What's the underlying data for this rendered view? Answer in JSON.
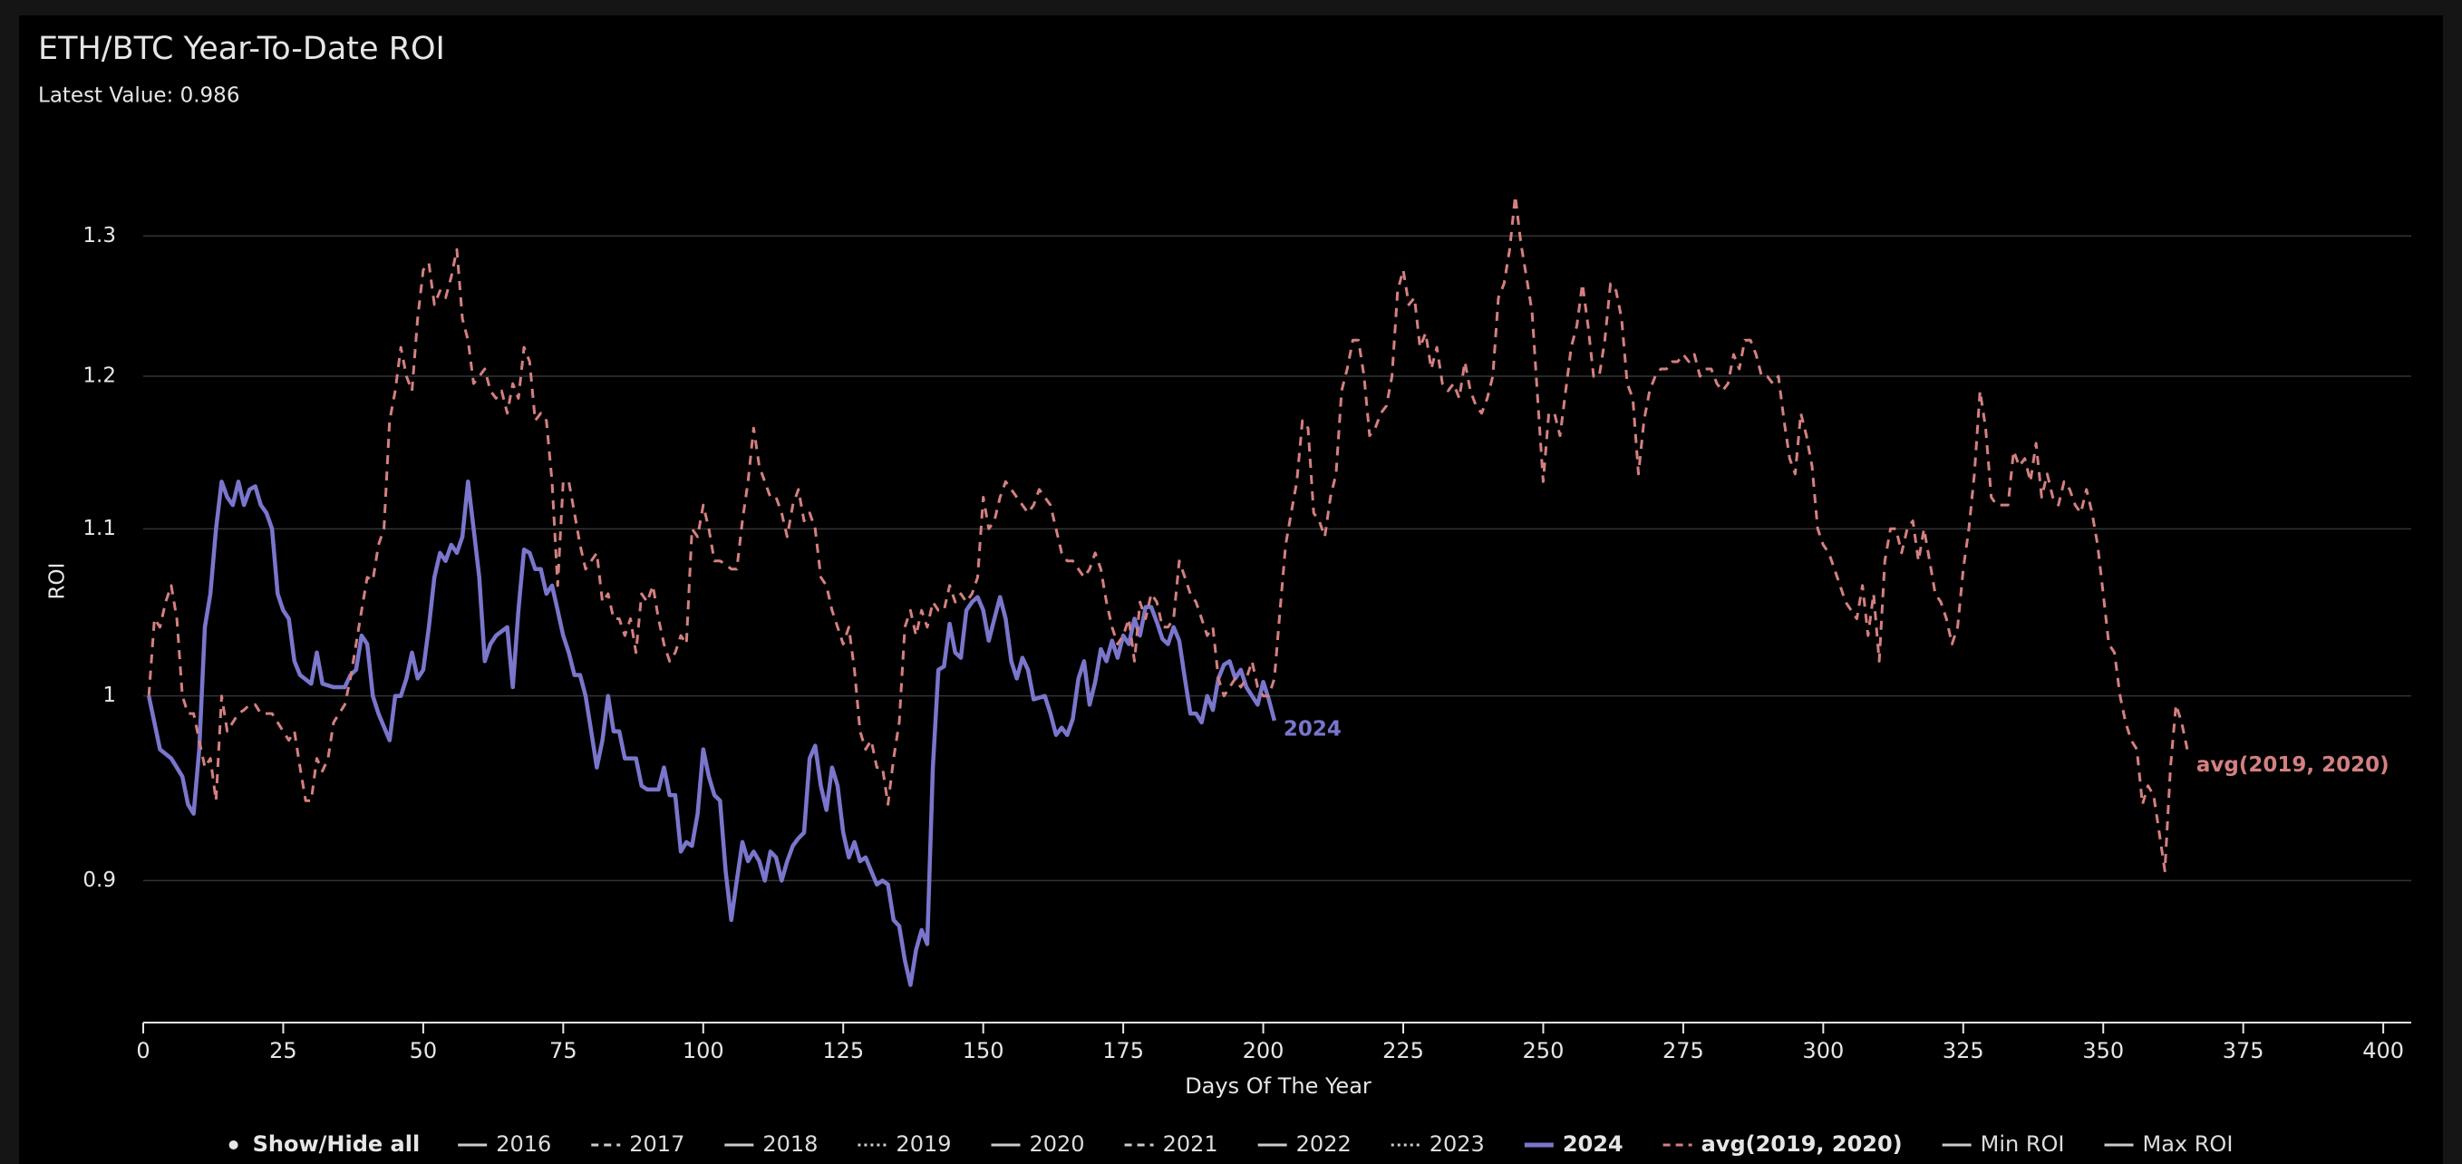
{
  "chart_data": {
    "type": "line",
    "title": "ETH/BTC Year-To-Date ROI",
    "subtitle": "Latest Value: 0.986",
    "x_label": "Days Of The Year",
    "y_label": "ROI",
    "yscale": "log",
    "grid": true,
    "legend_position": "bottom",
    "legend_toggle": "Show/Hide all",
    "xlim": [
      0,
      405
    ],
    "xticks": [
      0,
      25,
      50,
      75,
      100,
      125,
      150,
      175,
      200,
      225,
      250,
      275,
      300,
      325,
      350,
      375,
      400
    ],
    "ylim": [
      0.83,
      1.36
    ],
    "yticks": [
      0.9,
      1,
      1.1,
      1.2,
      1.3
    ],
    "series": [
      {
        "name": "2016",
        "color": "#cccccc",
        "dash": "solid",
        "visible": false,
        "x": [],
        "values": []
      },
      {
        "name": "2017",
        "color": "#cccccc",
        "dash": "dashed",
        "visible": false,
        "x": [],
        "values": []
      },
      {
        "name": "2018",
        "color": "#cccccc",
        "dash": "solid",
        "visible": false,
        "x": [],
        "values": []
      },
      {
        "name": "2019",
        "color": "#cccccc",
        "dash": "dotted",
        "visible": false,
        "x": [],
        "values": []
      },
      {
        "name": "2020",
        "color": "#cccccc",
        "dash": "solid",
        "visible": false,
        "x": [],
        "values": []
      },
      {
        "name": "2021",
        "color": "#cccccc",
        "dash": "dashed",
        "visible": false,
        "x": [],
        "values": []
      },
      {
        "name": "2022",
        "color": "#cccccc",
        "dash": "solid",
        "visible": false,
        "x": [],
        "values": []
      },
      {
        "name": "2023",
        "color": "#cccccc",
        "dash": "dotted",
        "visible": false,
        "x": [],
        "values": []
      },
      {
        "name": "2024",
        "color": "#7a76cc",
        "dash": "solid",
        "visible": true,
        "x": [
          1,
          3,
          5,
          7,
          8,
          9,
          10,
          11,
          12,
          13,
          14,
          15,
          16,
          17,
          18,
          19,
          20,
          21,
          22,
          23,
          24,
          25,
          26,
          27,
          28,
          30,
          31,
          32,
          34,
          36,
          37,
          38,
          39,
          40,
          41,
          42,
          44,
          45,
          46,
          47,
          48,
          49,
          50,
          51,
          52,
          53,
          54,
          55,
          56,
          57,
          58,
          59,
          60,
          61,
          62,
          63,
          65,
          66,
          67,
          68,
          69,
          70,
          71,
          72,
          73,
          74,
          75,
          76,
          77,
          78,
          79,
          80,
          81,
          82,
          83,
          84,
          85,
          86,
          88,
          89,
          90,
          92,
          93,
          94,
          95,
          96,
          97,
          98,
          99,
          100,
          101,
          102,
          103,
          104,
          105,
          106,
          107,
          108,
          109,
          110,
          111,
          112,
          113,
          114,
          115,
          116,
          117,
          118,
          119,
          120,
          121,
          122,
          123,
          124,
          125,
          126,
          127,
          128,
          129,
          130,
          131,
          132,
          133,
          134,
          135,
          136,
          137,
          138,
          139,
          140,
          141,
          142,
          143,
          144,
          145,
          146,
          147,
          148,
          149,
          150,
          151,
          152,
          153,
          154,
          155,
          156,
          157,
          158,
          159,
          161,
          162,
          163,
          164,
          165,
          166,
          167,
          168,
          169,
          170,
          171,
          172,
          173,
          174,
          175,
          176,
          177,
          178,
          179,
          180,
          181,
          182,
          183,
          184,
          185,
          186,
          187,
          188,
          189,
          190,
          191,
          192,
          193,
          194,
          195,
          196,
          197,
          198,
          199,
          200,
          201,
          202
        ],
        "values": [
          1.0,
          0.97,
          0.965,
          0.955,
          0.94,
          0.935,
          0.97,
          1.04,
          1.06,
          1.1,
          1.13,
          1.12,
          1.115,
          1.13,
          1.115,
          1.125,
          1.127,
          1.115,
          1.11,
          1.1,
          1.06,
          1.05,
          1.045,
          1.02,
          1.012,
          1.007,
          1.025,
          1.007,
          1.005,
          1.005,
          1.012,
          1.015,
          1.035,
          1.03,
          1.0,
          0.99,
          0.975,
          1.0,
          1.0,
          1.01,
          1.025,
          1.01,
          1.015,
          1.04,
          1.07,
          1.085,
          1.08,
          1.09,
          1.085,
          1.095,
          1.13,
          1.1,
          1.07,
          1.02,
          1.03,
          1.035,
          1.04,
          1.005,
          1.05,
          1.087,
          1.085,
          1.075,
          1.075,
          1.06,
          1.065,
          1.05,
          1.035,
          1.025,
          1.012,
          1.012,
          1.0,
          0.98,
          0.96,
          0.975,
          1.0,
          0.98,
          0.98,
          0.965,
          0.965,
          0.95,
          0.948,
          0.948,
          0.96,
          0.945,
          0.945,
          0.915,
          0.92,
          0.918,
          0.935,
          0.97,
          0.955,
          0.945,
          0.942,
          0.905,
          0.88,
          0.9,
          0.92,
          0.91,
          0.915,
          0.91,
          0.9,
          0.915,
          0.912,
          0.9,
          0.91,
          0.918,
          0.922,
          0.925,
          0.965,
          0.972,
          0.95,
          0.937,
          0.96,
          0.95,
          0.925,
          0.912,
          0.92,
          0.91,
          0.912,
          0.905,
          0.898,
          0.9,
          0.898,
          0.88,
          0.877,
          0.86,
          0.848,
          0.865,
          0.875,
          0.868,
          0.96,
          1.015,
          1.017,
          1.042,
          1.025,
          1.022,
          1.05,
          1.055,
          1.058,
          1.05,
          1.032,
          1.045,
          1.058,
          1.045,
          1.02,
          1.01,
          1.022,
          1.015,
          0.998,
          1.0,
          0.99,
          0.978,
          0.982,
          0.978,
          0.987,
          1.01,
          1.02,
          0.995,
          1.008,
          1.027,
          1.02,
          1.032,
          1.022,
          1.035,
          1.03,
          1.045,
          1.035,
          1.052,
          1.052,
          1.043,
          1.033,
          1.03,
          1.04,
          1.032,
          1.01,
          0.99,
          0.99,
          0.985,
          1.0,
          0.992,
          1.01,
          1.018,
          1.02,
          1.01,
          1.015,
          1.005,
          1.0,
          0.995,
          1.008,
          0.998,
          0.986
        ]
      },
      {
        "name": "avg(2019, 2020)",
        "color": "#d48080",
        "dash": "dashed",
        "visible": true,
        "x": [
          1,
          2,
          3,
          4,
          5,
          6,
          7,
          8,
          9,
          10,
          11,
          12,
          13,
          14,
          15,
          16,
          17,
          18,
          19,
          20,
          21,
          22,
          23,
          24,
          25,
          26,
          27,
          28,
          29,
          30,
          31,
          32,
          33,
          34,
          35,
          36,
          37,
          38,
          39,
          40,
          41,
          42,
          43,
          44,
          45,
          46,
          47,
          48,
          49,
          50,
          51,
          52,
          53,
          54,
          55,
          56,
          57,
          58,
          59,
          60,
          61,
          62,
          63,
          64,
          65,
          66,
          67,
          68,
          69,
          70,
          71,
          72,
          73,
          74,
          75,
          76,
          77,
          78,
          79,
          80,
          81,
          82,
          83,
          84,
          85,
          86,
          87,
          88,
          89,
          90,
          91,
          92,
          93,
          94,
          95,
          96,
          97,
          98,
          99,
          100,
          101,
          102,
          103,
          104,
          105,
          106,
          107,
          108,
          109,
          110,
          111,
          112,
          113,
          114,
          115,
          116,
          117,
          118,
          119,
          120,
          121,
          122,
          123,
          124,
          125,
          126,
          127,
          128,
          129,
          130,
          131,
          132,
          133,
          134,
          135,
          136,
          137,
          138,
          139,
          140,
          141,
          142,
          143,
          144,
          145,
          146,
          147,
          148,
          149,
          150,
          151,
          152,
          153,
          154,
          155,
          156,
          157,
          158,
          159,
          160,
          161,
          162,
          163,
          164,
          165,
          166,
          167,
          168,
          169,
          170,
          171,
          172,
          173,
          174,
          175,
          176,
          177,
          178,
          179,
          180,
          181,
          182,
          183,
          184,
          185,
          186,
          187,
          188,
          189,
          190,
          191,
          192,
          193,
          194,
          195,
          196,
          197,
          198,
          199,
          200,
          201,
          202,
          203,
          204,
          205,
          206,
          207,
          208,
          209,
          210,
          211,
          212,
          213,
          214,
          215,
          216,
          217,
          218,
          219,
          220,
          221,
          222,
          223,
          224,
          225,
          226,
          227,
          228,
          229,
          230,
          231,
          232,
          233,
          234,
          235,
          236,
          237,
          238,
          239,
          240,
          241,
          242,
          243,
          244,
          245,
          246,
          247,
          248,
          249,
          250,
          251,
          252,
          253,
          254,
          255,
          256,
          257,
          258,
          259,
          260,
          261,
          262,
          263,
          264,
          265,
          266,
          267,
          268,
          269,
          270,
          271,
          272,
          273,
          274,
          275,
          276,
          277,
          278,
          279,
          280,
          281,
          282,
          283,
          284,
          285,
          286,
          287,
          288,
          289,
          290,
          291,
          292,
          293,
          294,
          295,
          296,
          297,
          298,
          299,
          300,
          301,
          302,
          303,
          304,
          305,
          306,
          307,
          308,
          309,
          310,
          311,
          312,
          313,
          314,
          315,
          316,
          317,
          318,
          319,
          320,
          321,
          322,
          323,
          324,
          325,
          326,
          327,
          328,
          329,
          330,
          331,
          332,
          333,
          334,
          335,
          336,
          337,
          338,
          339,
          340,
          341,
          342,
          343,
          344,
          345,
          346,
          347,
          348,
          349,
          350,
          351,
          352,
          353,
          354,
          355,
          356,
          357,
          358,
          359,
          360,
          361,
          362,
          363,
          364,
          365
        ],
        "values": [
          1.0,
          1.045,
          1.04,
          1.055,
          1.065,
          1.045,
          1.0,
          0.99,
          0.99,
          0.975,
          0.96,
          0.965,
          0.942,
          1.0,
          0.98,
          0.985,
          0.99,
          0.992,
          0.995,
          0.995,
          0.99,
          0.99,
          0.99,
          0.985,
          0.98,
          0.975,
          0.98,
          0.96,
          0.942,
          0.942,
          0.965,
          0.958,
          0.965,
          0.985,
          0.99,
          0.995,
          1.01,
          1.03,
          1.05,
          1.07,
          1.068,
          1.09,
          1.1,
          1.17,
          1.19,
          1.22,
          1.2,
          1.19,
          1.24,
          1.275,
          1.28,
          1.25,
          1.26,
          1.255,
          1.27,
          1.29,
          1.24,
          1.225,
          1.195,
          1.2,
          1.205,
          1.19,
          1.185,
          1.19,
          1.175,
          1.195,
          1.185,
          1.22,
          1.21,
          1.17,
          1.175,
          1.17,
          1.13,
          1.065,
          1.13,
          1.13,
          1.11,
          1.09,
          1.075,
          1.08,
          1.085,
          1.055,
          1.06,
          1.045,
          1.045,
          1.035,
          1.045,
          1.025,
          1.06,
          1.055,
          1.065,
          1.045,
          1.03,
          1.02,
          1.025,
          1.035,
          1.03,
          1.1,
          1.095,
          1.115,
          1.1,
          1.08,
          1.08,
          1.078,
          1.075,
          1.075,
          1.105,
          1.13,
          1.165,
          1.14,
          1.13,
          1.12,
          1.12,
          1.11,
          1.095,
          1.115,
          1.125,
          1.105,
          1.11,
          1.1,
          1.07,
          1.065,
          1.05,
          1.04,
          1.03,
          1.04,
          1.015,
          0.98,
          0.97,
          0.975,
          0.96,
          0.96,
          0.94,
          0.965,
          0.985,
          1.04,
          1.05,
          1.035,
          1.05,
          1.04,
          1.055,
          1.05,
          1.05,
          1.065,
          1.055,
          1.06,
          1.055,
          1.06,
          1.07,
          1.12,
          1.1,
          1.105,
          1.12,
          1.13,
          1.125,
          1.12,
          1.115,
          1.11,
          1.115,
          1.125,
          1.12,
          1.115,
          1.1,
          1.085,
          1.08,
          1.08,
          1.075,
          1.07,
          1.075,
          1.085,
          1.075,
          1.055,
          1.04,
          1.03,
          1.035,
          1.045,
          1.02,
          1.055,
          1.045,
          1.06,
          1.055,
          1.04,
          1.04,
          1.045,
          1.08,
          1.07,
          1.06,
          1.055,
          1.045,
          1.035,
          1.04,
          1.01,
          1.0,
          1.005,
          1.01,
          1.005,
          1.01,
          1.02,
          1.005,
          1.0,
          1.0,
          1.01,
          1.05,
          1.09,
          1.11,
          1.13,
          1.17,
          1.165,
          1.11,
          1.105,
          1.095,
          1.12,
          1.135,
          1.19,
          1.205,
          1.225,
          1.225,
          1.2,
          1.16,
          1.165,
          1.175,
          1.18,
          1.2,
          1.26,
          1.275,
          1.25,
          1.255,
          1.22,
          1.23,
          1.205,
          1.22,
          1.195,
          1.19,
          1.195,
          1.185,
          1.21,
          1.19,
          1.18,
          1.175,
          1.185,
          1.2,
          1.255,
          1.265,
          1.29,
          1.33,
          1.295,
          1.27,
          1.245,
          1.185,
          1.13,
          1.175,
          1.175,
          1.16,
          1.19,
          1.22,
          1.235,
          1.265,
          1.235,
          1.2,
          1.2,
          1.225,
          1.265,
          1.26,
          1.24,
          1.195,
          1.185,
          1.135,
          1.17,
          1.19,
          1.2,
          1.205,
          1.205,
          1.21,
          1.21,
          1.215,
          1.21,
          1.215,
          1.2,
          1.205,
          1.205,
          1.195,
          1.19,
          1.195,
          1.215,
          1.205,
          1.225,
          1.225,
          1.215,
          1.2,
          1.2,
          1.195,
          1.2,
          1.17,
          1.145,
          1.135,
          1.175,
          1.16,
          1.14,
          1.1,
          1.09,
          1.085,
          1.075,
          1.065,
          1.055,
          1.05,
          1.045,
          1.065,
          1.035,
          1.06,
          1.02,
          1.08,
          1.1,
          1.1,
          1.085,
          1.1,
          1.105,
          1.08,
          1.1,
          1.08,
          1.06,
          1.055,
          1.045,
          1.03,
          1.04,
          1.075,
          1.1,
          1.135,
          1.19,
          1.165,
          1.12,
          1.115,
          1.115,
          1.115,
          1.15,
          1.14,
          1.145,
          1.13,
          1.155,
          1.12,
          1.135,
          1.12,
          1.115,
          1.13,
          1.125,
          1.115,
          1.11,
          1.125,
          1.11,
          1.09,
          1.06,
          1.03,
          1.025,
          1.0,
          0.985,
          0.975,
          0.97,
          0.94,
          0.95,
          0.945,
          0.925,
          0.905,
          0.96,
          0.995,
          0.985,
          0.97
        ]
      },
      {
        "name": "Min ROI",
        "color": "#cccccc",
        "dash": "solid",
        "visible": false,
        "x": [],
        "values": []
      },
      {
        "name": "Max ROI",
        "color": "#cccccc",
        "dash": "solid",
        "visible": false,
        "x": [],
        "values": []
      }
    ]
  }
}
